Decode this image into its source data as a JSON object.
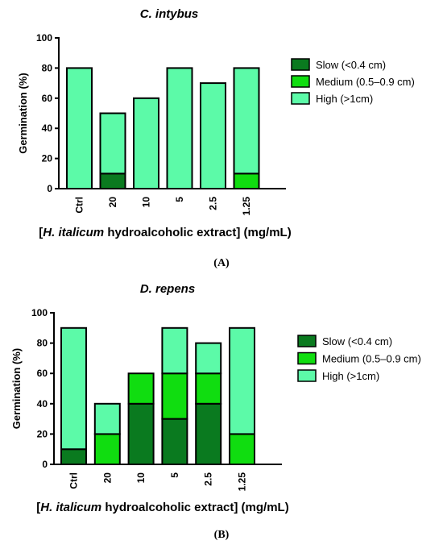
{
  "colors": {
    "slow": "#0a7a1f",
    "medium": "#10dd10",
    "high": "#5cfaa8",
    "stroke": "#000000"
  },
  "chart_data": [
    {
      "type": "bar",
      "stacked": true,
      "title": "C. intybus",
      "ylabel": "Germination (%)",
      "xlabel_italic": "H. italicum",
      "xlabel_pre": "[",
      "xlabel_post": " hydroalcoholic extract] (mg/mL)",
      "ylim": [
        0,
        100
      ],
      "yticks": [
        "0",
        "20",
        "40",
        "60",
        "80",
        "100"
      ],
      "categories": [
        "Ctrl",
        "20",
        "10",
        "5",
        "2.5",
        "1.25"
      ],
      "series": [
        {
          "name": "Slow (<0.4 cm)",
          "values": [
            0,
            10,
            0,
            0,
            0,
            0
          ]
        },
        {
          "name": "Medium (0.5–0.9 cm)",
          "values": [
            0,
            0,
            0,
            0,
            0,
            10
          ]
        },
        {
          "name": "High (>1cm)",
          "values": [
            80,
            40,
            60,
            80,
            70,
            70
          ]
        }
      ],
      "legend": "right",
      "panel_label": "(A)"
    },
    {
      "type": "bar",
      "stacked": true,
      "title": "D. repens",
      "ylabel": "Germination (%)",
      "xlabel_italic": "H. italicum",
      "xlabel_pre": "[",
      "xlabel_post": " hydroalcoholic extract] (mg/mL)",
      "ylim": [
        0,
        100
      ],
      "yticks": [
        "0",
        "20",
        "40",
        "60",
        "80",
        "100"
      ],
      "categories": [
        "Ctrl",
        "20",
        "10",
        "5",
        "2.5",
        "1.25"
      ],
      "series": [
        {
          "name": "Slow (<0.4 cm)",
          "values": [
            10,
            0,
            40,
            30,
            40,
            0
          ]
        },
        {
          "name": "Medium (0.5–0.9 cm)",
          "values": [
            0,
            20,
            20,
            30,
            20,
            20
          ]
        },
        {
          "name": "High (>1cm)",
          "values": [
            80,
            20,
            0,
            30,
            20,
            70
          ]
        }
      ],
      "legend": "right",
      "panel_label": "(B)"
    }
  ]
}
